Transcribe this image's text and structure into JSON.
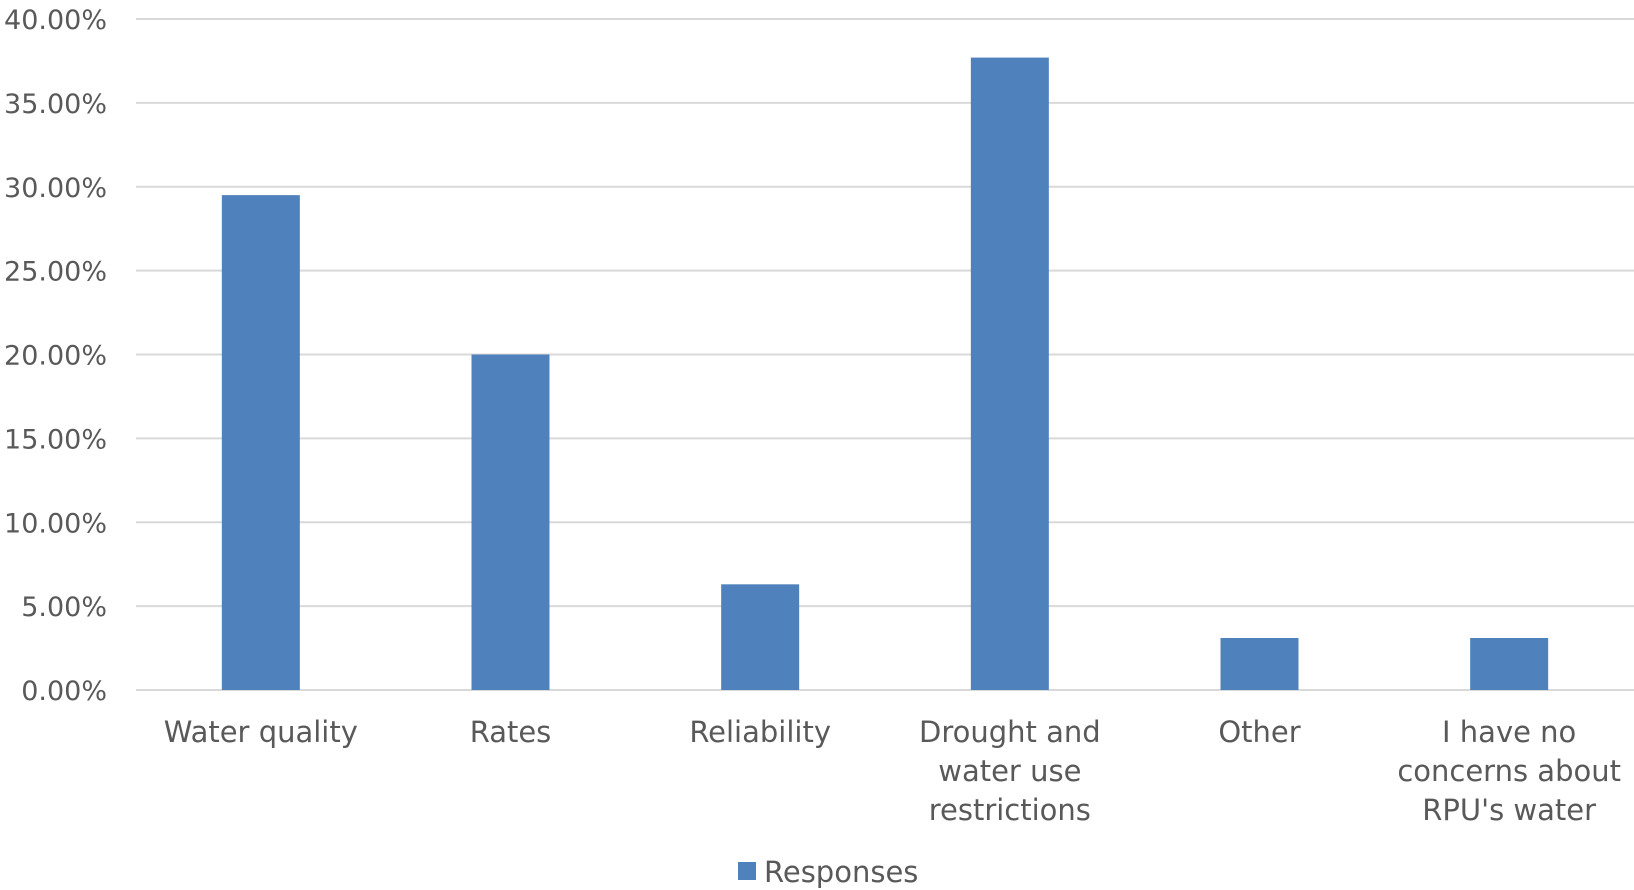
{
  "chart_data": {
    "type": "bar",
    "categories": [
      [
        "Water quality"
      ],
      [
        "Rates"
      ],
      [
        "Reliability"
      ],
      [
        "Drought and",
        "water use",
        "restrictions"
      ],
      [
        "Other"
      ],
      [
        "I have no",
        "concerns about",
        "RPU's water"
      ]
    ],
    "series": [
      {
        "name": "Responses",
        "values": [
          29.5,
          20.0,
          6.3,
          37.7,
          3.1,
          3.1
        ]
      }
    ],
    "ylim": [
      0,
      40
    ],
    "yticks": [
      "0.00%",
      "5.00%",
      "10.00%",
      "15.00%",
      "20.00%",
      "25.00%",
      "30.00%",
      "35.00%",
      "40.00%"
    ],
    "grid": true,
    "legend_position": "bottom-center",
    "bar_color": "#4f81bd"
  }
}
